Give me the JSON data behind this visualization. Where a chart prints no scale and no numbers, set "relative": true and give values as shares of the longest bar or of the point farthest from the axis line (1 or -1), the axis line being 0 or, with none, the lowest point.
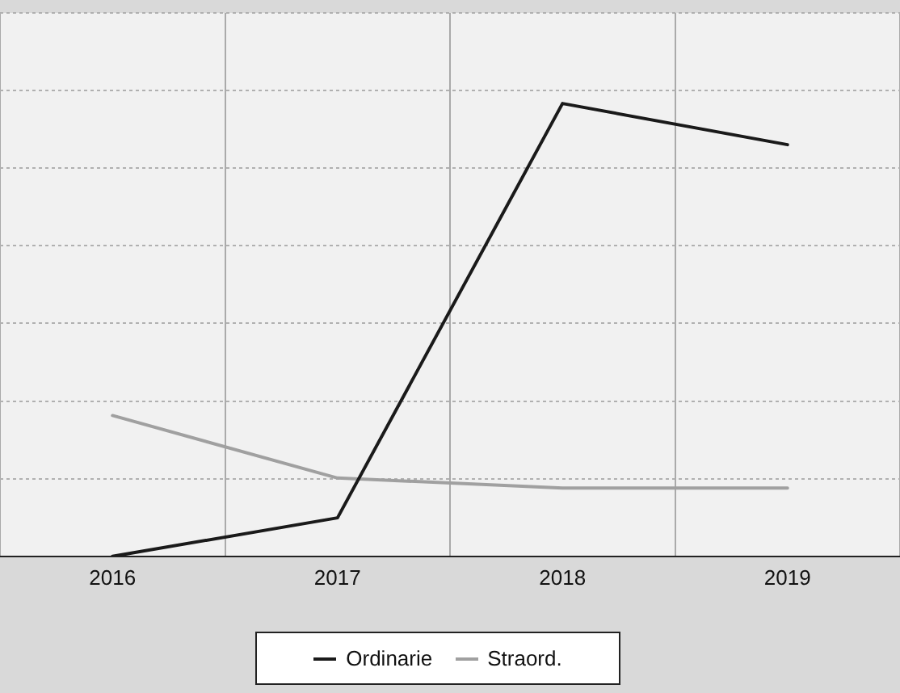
{
  "chart_data": {
    "type": "line",
    "relative": true,
    "categories": [
      "2016",
      "2017",
      "2018",
      "2019"
    ],
    "series": [
      {
        "name": "Ordinarie",
        "color": "#1a1a1a",
        "values": [
          0,
          0.085,
          1,
          0.909
        ]
      },
      {
        "name": "Straord.",
        "color": "#a0a0a0",
        "values": [
          0.311,
          0.173,
          0.151,
          0.151
        ]
      }
    ],
    "grid": true,
    "legend": "bottom",
    "marker": "none",
    "line_style": "solid"
  }
}
